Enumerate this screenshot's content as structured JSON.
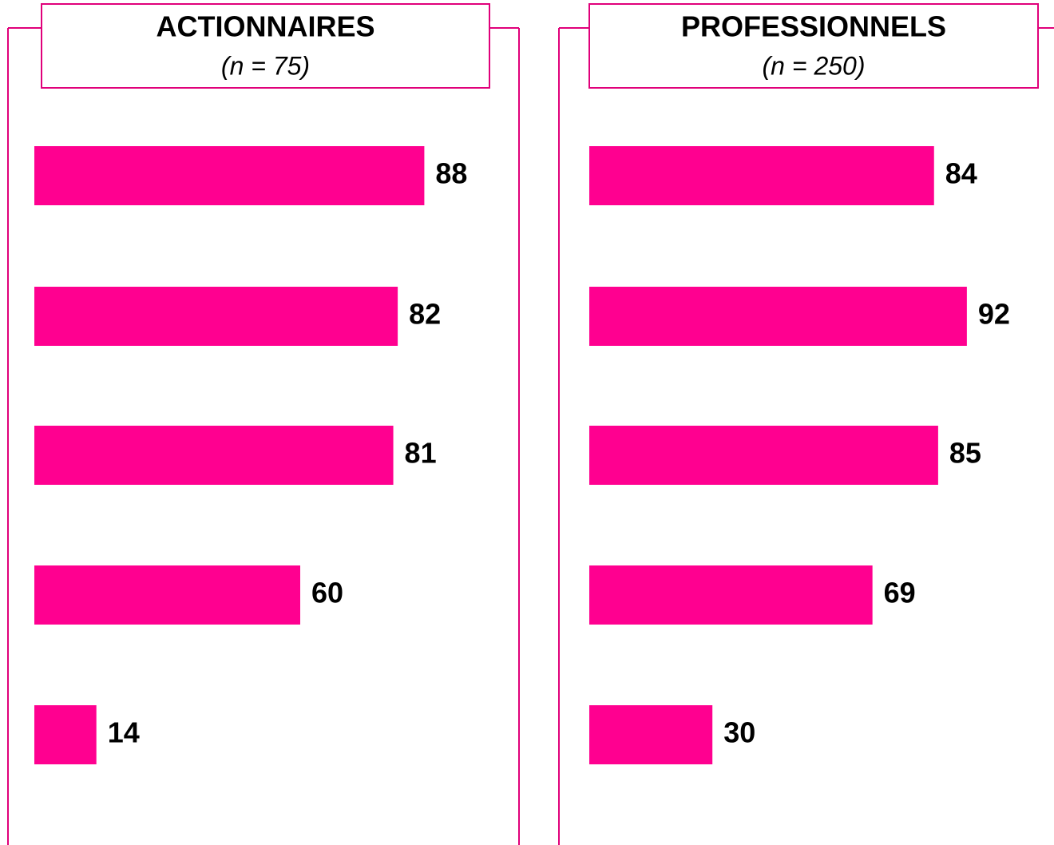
{
  "chart_data": [
    {
      "type": "bar",
      "orientation": "horizontal",
      "title": "ACTIONNAIRES",
      "subtitle": "(n = 75)",
      "values": [
        88,
        82,
        81,
        60,
        14
      ],
      "color": "#ff0090",
      "xlim": [
        0,
        100
      ]
    },
    {
      "type": "bar",
      "orientation": "horizontal",
      "title": "PROFESSIONNELS",
      "subtitle": "(n = 250)",
      "values": [
        84,
        92,
        85,
        69,
        30
      ],
      "color": "#ff0090",
      "xlim": [
        0,
        100
      ]
    }
  ]
}
